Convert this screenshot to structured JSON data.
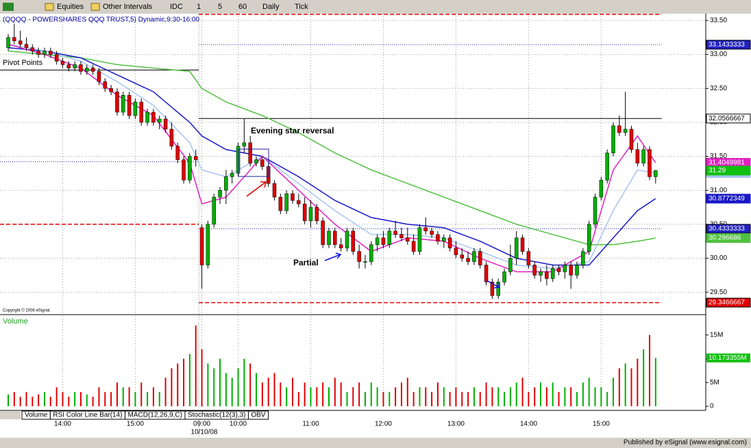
{
  "toolbar": {
    "items": [
      "Equities",
      "Other Intervals",
      "IDC",
      "1",
      "5",
      "60",
      "Daily",
      "Tick"
    ]
  },
  "tabs": [
    "Volume",
    "RSI Color Line Bar(14)",
    "MACD(12,26,9,C)",
    "Stochastic(12(3),3)",
    "OBV"
  ],
  "footer": "Published by eSignal (www.esignal.com)",
  "chart_data": {
    "type": "candlestick",
    "title": "(QQQQ - POWERSHARES QQQ TRUST,5) Dynamic,9:30-16:00",
    "annotations": {
      "pivot": "Pivot Points",
      "evening_star": "Evening star reversal",
      "partial": "Partial",
      "copyright": "Copyright © 2006 eSignal."
    },
    "date_label": "10/10/08",
    "categories": [
      null,
      null,
      null,
      null,
      null,
      null,
      null,
      null,
      null,
      "14:00",
      null,
      null,
      null,
      null,
      null,
      null,
      null,
      null,
      null,
      null,
      null,
      "15:00",
      null,
      null,
      null,
      null,
      null,
      null,
      null,
      null,
      null,
      null,
      "09:00",
      null,
      null,
      null,
      null,
      null,
      "10:00",
      null,
      null,
      null,
      null,
      null,
      null,
      null,
      null,
      null,
      null,
      null,
      "11:00",
      null,
      null,
      null,
      null,
      null,
      null,
      null,
      null,
      null,
      null,
      null,
      "12:00",
      null,
      null,
      null,
      null,
      null,
      null,
      null,
      null,
      null,
      null,
      null,
      "13:00",
      null,
      null,
      null,
      null,
      null,
      null,
      null,
      null,
      null,
      null,
      null,
      "14:00",
      null,
      null,
      null,
      null,
      null,
      null,
      null,
      null,
      null,
      null,
      null,
      "15:00",
      null,
      null,
      null,
      null,
      null,
      null,
      null,
      null,
      null
    ],
    "up_color": "#00b000",
    "down_color": "#e00000",
    "candles": [
      [
        33.1,
        33.3,
        33.05,
        33.25
      ],
      [
        33.25,
        33.45,
        33.15,
        33.2
      ],
      [
        33.2,
        33.35,
        33.1,
        33.15
      ],
      [
        33.15,
        33.25,
        33.05,
        33.1
      ],
      [
        33.1,
        33.15,
        33.0,
        33.05
      ],
      [
        33.05,
        33.1,
        32.95,
        33.0
      ],
      [
        33.0,
        33.1,
        32.95,
        33.05
      ],
      [
        33.05,
        33.1,
        32.95,
        33.0
      ],
      [
        33.0,
        33.05,
        32.85,
        32.9
      ],
      [
        32.9,
        32.95,
        32.8,
        32.85
      ],
      [
        32.85,
        32.9,
        32.75,
        32.8
      ],
      [
        32.8,
        32.9,
        32.75,
        32.85
      ],
      [
        32.85,
        32.9,
        32.7,
        32.75
      ],
      [
        32.75,
        32.85,
        32.7,
        32.8
      ],
      [
        32.8,
        32.85,
        32.7,
        32.75
      ],
      [
        32.75,
        32.8,
        32.55,
        32.6
      ],
      [
        32.6,
        32.65,
        32.45,
        32.5
      ],
      [
        32.5,
        32.55,
        32.4,
        32.45
      ],
      [
        32.45,
        32.5,
        32.1,
        32.15
      ],
      [
        32.15,
        32.45,
        32.1,
        32.4
      ],
      [
        32.4,
        32.45,
        32.05,
        32.1
      ],
      [
        32.1,
        32.35,
        32.05,
        32.3
      ],
      [
        32.3,
        32.35,
        31.95,
        32.0
      ],
      [
        32.0,
        32.2,
        31.95,
        32.15
      ],
      [
        32.15,
        32.2,
        31.95,
        32.0
      ],
      [
        32.0,
        32.1,
        31.9,
        32.05
      ],
      [
        32.05,
        32.1,
        31.85,
        31.9
      ],
      [
        31.9,
        32.0,
        31.6,
        31.65
      ],
      [
        31.65,
        31.7,
        31.4,
        31.45
      ],
      [
        31.45,
        31.5,
        31.1,
        31.15
      ],
      [
        31.15,
        31.55,
        31.1,
        31.5
      ],
      [
        31.5,
        31.6,
        31.35,
        31.45
      ],
      [
        30.45,
        30.5,
        29.55,
        29.9
      ],
      [
        29.9,
        30.55,
        29.85,
        30.5
      ],
      [
        30.5,
        30.95,
        30.45,
        30.9
      ],
      [
        30.9,
        31.05,
        30.8,
        31.0
      ],
      [
        31.0,
        31.3,
        30.8,
        31.2
      ],
      [
        31.2,
        31.3,
        31.1,
        31.25
      ],
      [
        31.25,
        31.7,
        31.2,
        31.65
      ],
      [
        31.65,
        32.05,
        31.55,
        31.7
      ],
      [
        31.7,
        31.8,
        31.35,
        31.4
      ],
      [
        31.4,
        31.5,
        31.35,
        31.45
      ],
      [
        31.45,
        31.5,
        31.3,
        31.35
      ],
      [
        31.35,
        31.4,
        31.05,
        31.1
      ],
      [
        31.1,
        31.15,
        30.85,
        30.9
      ],
      [
        30.9,
        30.95,
        30.65,
        30.7
      ],
      [
        30.7,
        31.0,
        30.65,
        30.95
      ],
      [
        30.95,
        31.0,
        30.8,
        30.85
      ],
      [
        30.85,
        30.95,
        30.75,
        30.8
      ],
      [
        30.8,
        30.9,
        30.5,
        30.55
      ],
      [
        30.55,
        30.85,
        30.45,
        30.75
      ],
      [
        30.75,
        30.8,
        30.5,
        30.55
      ],
      [
        30.55,
        30.6,
        30.15,
        30.2
      ],
      [
        30.2,
        30.45,
        30.15,
        30.4
      ],
      [
        30.4,
        30.45,
        30.15,
        30.2
      ],
      [
        30.2,
        30.3,
        30.1,
        30.15
      ],
      [
        30.15,
        30.45,
        30.1,
        30.4
      ],
      [
        30.4,
        30.45,
        30.05,
        30.1
      ],
      [
        30.1,
        30.2,
        29.85,
        29.95
      ],
      [
        29.95,
        30.05,
        29.85,
        29.95
      ],
      [
        29.95,
        30.25,
        29.9,
        30.2
      ],
      [
        30.2,
        30.35,
        30.1,
        30.3
      ],
      [
        30.3,
        30.4,
        30.15,
        30.2
      ],
      [
        30.2,
        30.45,
        30.15,
        30.4
      ],
      [
        30.4,
        30.55,
        30.3,
        30.35
      ],
      [
        30.35,
        30.45,
        30.25,
        30.3
      ],
      [
        30.3,
        30.45,
        30.2,
        30.25
      ],
      [
        30.25,
        30.35,
        30.05,
        30.1
      ],
      [
        30.1,
        30.5,
        30.05,
        30.45
      ],
      [
        30.45,
        30.6,
        30.35,
        30.4
      ],
      [
        30.4,
        30.45,
        30.3,
        30.35
      ],
      [
        30.35,
        30.4,
        30.2,
        30.25
      ],
      [
        30.25,
        30.35,
        30.15,
        30.3
      ],
      [
        30.3,
        30.35,
        30.1,
        30.15
      ],
      [
        30.15,
        30.25,
        30.0,
        30.05
      ],
      [
        30.05,
        30.15,
        29.95,
        30.0
      ],
      [
        30.0,
        30.1,
        29.9,
        29.95
      ],
      [
        29.95,
        30.15,
        29.9,
        30.1
      ],
      [
        30.1,
        30.15,
        29.85,
        29.9
      ],
      [
        29.9,
        29.95,
        29.6,
        29.65
      ],
      [
        29.65,
        29.7,
        29.4,
        29.45
      ],
      [
        29.45,
        29.7,
        29.4,
        29.65
      ],
      [
        29.65,
        29.85,
        29.6,
        29.8
      ],
      [
        29.8,
        30.2,
        29.75,
        30.0
      ],
      [
        30.0,
        30.4,
        29.9,
        30.3
      ],
      [
        30.3,
        30.35,
        30.05,
        30.1
      ],
      [
        30.1,
        30.15,
        29.85,
        29.9
      ],
      [
        29.9,
        29.95,
        29.7,
        29.75
      ],
      [
        29.75,
        29.85,
        29.65,
        29.8
      ],
      [
        29.8,
        29.9,
        29.6,
        29.7
      ],
      [
        29.7,
        29.9,
        29.65,
        29.85
      ],
      [
        29.85,
        29.9,
        29.75,
        29.8
      ],
      [
        29.8,
        29.95,
        29.7,
        29.9
      ],
      [
        29.9,
        29.95,
        29.55,
        29.75
      ],
      [
        29.75,
        29.95,
        29.7,
        29.9
      ],
      [
        29.9,
        30.15,
        29.85,
        30.1
      ],
      [
        30.1,
        30.55,
        30.05,
        30.5
      ],
      [
        30.5,
        30.95,
        30.45,
        30.9
      ],
      [
        30.9,
        31.2,
        30.85,
        31.15
      ],
      [
        31.15,
        31.6,
        31.1,
        31.55
      ],
      [
        31.55,
        32.0,
        31.5,
        31.95
      ],
      [
        31.95,
        32.1,
        31.8,
        31.85
      ],
      [
        31.85,
        32.45,
        31.8,
        31.9
      ],
      [
        31.9,
        31.95,
        31.55,
        31.6
      ],
      [
        31.6,
        31.7,
        31.35,
        31.4
      ],
      [
        31.4,
        31.65,
        31.35,
        31.6
      ],
      [
        31.6,
        31.65,
        31.15,
        31.2
      ],
      [
        31.2,
        31.3,
        31.1,
        31.29
      ]
    ],
    "ylim": [
      29.19,
      33.6
    ],
    "yticks": [
      {
        "value": 33.5,
        "label": "33.50"
      },
      {
        "value": 33,
        "label": "33.00"
      },
      {
        "value": 32.5,
        "label": "32.50"
      },
      {
        "value": 32,
        "label": "32.00"
      },
      {
        "value": 31.5,
        "label": "31.50"
      },
      {
        "value": 31,
        "label": "31.00"
      },
      {
        "value": 30.5,
        "label": "30.50"
      },
      {
        "value": 30,
        "label": "30.00"
      },
      {
        "value": 29.5,
        "label": "29.50"
      }
    ],
    "grid": true,
    "ma_index": [
      0,
      6,
      12,
      18,
      24,
      30,
      32,
      36,
      42,
      48,
      54,
      60,
      66,
      72,
      78,
      84,
      90,
      96,
      100,
      104,
      107
    ],
    "moving_averages": [
      {
        "color": "#50c040",
        "values": [
          33.05,
          33.0,
          32.95,
          32.85,
          32.8,
          32.75,
          32.5,
          32.3,
          32.1,
          31.85,
          31.55,
          31.3,
          31.1,
          30.9,
          30.7,
          30.5,
          30.35,
          30.2,
          30.2,
          30.25,
          30.296686
        ]
      },
      {
        "color": "#1818c8",
        "values": [
          33.1,
          33.05,
          32.95,
          32.7,
          32.45,
          32.0,
          31.8,
          31.6,
          31.5,
          31.2,
          30.85,
          30.6,
          30.5,
          30.45,
          30.25,
          30.0,
          29.9,
          29.9,
          30.3,
          30.7,
          30.8772349
        ]
      },
      {
        "color": "#a8c4f0",
        "values": [
          33.15,
          33.05,
          32.9,
          32.6,
          32.25,
          31.7,
          31.3,
          31.2,
          31.5,
          31.1,
          30.7,
          30.35,
          30.35,
          30.3,
          30.1,
          29.9,
          29.85,
          29.95,
          30.7,
          31.3,
          31.25356
        ]
      },
      {
        "color": "#e020c0",
        "values": [
          33.15,
          33.0,
          32.8,
          32.4,
          32.1,
          31.4,
          30.8,
          30.9,
          31.5,
          31.0,
          30.5,
          30.1,
          30.3,
          30.25,
          30.0,
          29.8,
          29.8,
          30.1,
          31.3,
          31.8,
          31.4049981
        ]
      }
    ],
    "last_price_color": "#10c010",
    "prior_levels": [
      {
        "value": 32.77,
        "color": "#000000",
        "style": "solid"
      },
      {
        "value": 31.42,
        "color": "#2020c0",
        "style": "dotted"
      },
      {
        "value": 30.5,
        "color": "#e00000",
        "style": "dashed"
      }
    ],
    "current_levels": [
      {
        "value": 33.59,
        "color": "#e00000",
        "style": "dashed"
      },
      {
        "value": 33.1433333,
        "color": "#2020c0",
        "style": "dotted",
        "box": "#2020c0"
      },
      {
        "value": 32.0566667,
        "color": "#000000",
        "style": "solid",
        "box": "#ffffff"
      },
      {
        "value": 30.4333333,
        "color": "#2020c0",
        "style": "dotted",
        "box": "#2020c0"
      },
      {
        "value": 29.3466667,
        "color": "#e00000",
        "style": "dashed",
        "box": "#e00000"
      }
    ],
    "volume": {
      "title": "Volume",
      "ylim": [
        0,
        19
      ],
      "yticks": [
        {
          "value": 15,
          "label": "15M"
        },
        {
          "value": 10,
          "label": "10M"
        },
        {
          "value": 5,
          "label": "5M"
        },
        0
      ],
      "values": [
        2.5,
        3,
        2,
        3,
        2,
        2.5,
        3,
        2,
        4,
        3,
        2,
        3,
        3,
        2.5,
        2,
        4,
        3,
        3,
        5,
        4,
        4,
        3,
        5,
        3,
        4,
        3,
        6,
        8,
        9,
        10,
        11,
        17,
        12,
        9,
        8,
        10,
        7,
        6,
        8,
        10,
        9,
        7,
        5,
        6,
        7,
        5,
        4,
        6,
        3,
        5,
        4,
        4,
        5,
        4,
        6,
        5,
        3,
        4,
        5,
        3,
        5,
        4,
        3,
        3,
        4,
        5,
        6,
        3,
        4,
        4,
        3,
        5,
        4,
        3,
        4,
        3,
        3,
        4,
        3,
        5,
        4,
        4,
        3,
        4,
        5,
        6,
        3,
        4,
        5,
        4,
        5,
        3,
        4,
        4,
        3,
        5,
        6,
        4,
        4,
        3,
        6,
        8,
        9,
        8,
        10,
        12,
        15,
        10.173355
      ],
      "last_value_label": "10.173355M",
      "box": "#10c010"
    }
  }
}
